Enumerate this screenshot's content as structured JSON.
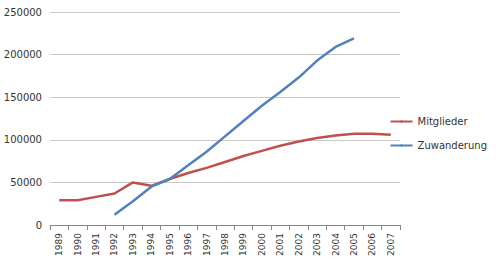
{
  "chart_data": {
    "type": "line",
    "categories": [
      "1989",
      "1990",
      "1991",
      "1992",
      "1993",
      "1994",
      "1995",
      "1996",
      "1997",
      "1998",
      "1999",
      "2000",
      "2001",
      "2002",
      "2003",
      "2004",
      "2005",
      "2006",
      "2007"
    ],
    "series": [
      {
        "name": "Mitglieder",
        "color": "#c0504d",
        "values": [
          29000,
          29000,
          33000,
          37000,
          50000,
          46000,
          54000,
          61000,
          67000,
          74000,
          81000,
          87000,
          93000,
          98000,
          102000,
          105000,
          107000,
          107000,
          106000
        ]
      },
      {
        "name": "Zuwanderung",
        "color": "#4f81bd",
        "values": [
          null,
          null,
          null,
          12000,
          28000,
          45000,
          54000,
          70000,
          86000,
          104000,
          122000,
          140000,
          156000,
          173000,
          193000,
          209000,
          219000,
          null,
          null
        ]
      }
    ],
    "ylim": [
      0,
      250000
    ],
    "yticks": [
      0,
      50000,
      100000,
      150000,
      200000,
      250000
    ],
    "grid": true,
    "legend": "right"
  }
}
